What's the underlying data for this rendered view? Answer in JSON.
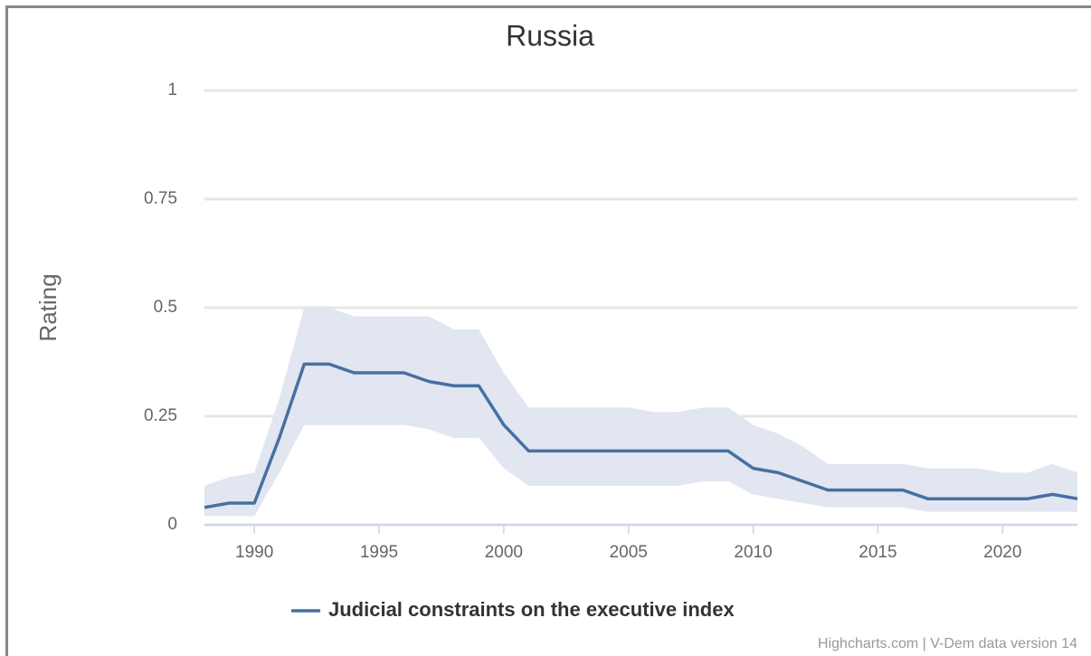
{
  "chart_data": {
    "type": "line",
    "title": "Russia",
    "y_label": "Rating",
    "credits": "Highcharts.com | V-Dem data version 14",
    "x": [
      1988,
      1989,
      1990,
      1991,
      1992,
      1993,
      1994,
      1995,
      1996,
      1997,
      1998,
      1999,
      2000,
      2001,
      2002,
      2003,
      2004,
      2005,
      2006,
      2007,
      2008,
      2009,
      2010,
      2011,
      2012,
      2013,
      2014,
      2015,
      2016,
      2017,
      2018,
      2019,
      2020,
      2021,
      2022,
      2023
    ],
    "series": [
      {
        "name": "Judicial constraints on the executive index",
        "color": "#4670a4",
        "band_color": "#e1e6f0",
        "values": [
          0.04,
          0.05,
          0.05,
          0.2,
          0.37,
          0.37,
          0.35,
          0.35,
          0.35,
          0.33,
          0.32,
          0.32,
          0.23,
          0.17,
          0.17,
          0.17,
          0.17,
          0.17,
          0.17,
          0.17,
          0.17,
          0.17,
          0.13,
          0.12,
          0.1,
          0.08,
          0.08,
          0.08,
          0.08,
          0.06,
          0.06,
          0.06,
          0.06,
          0.06,
          0.07,
          0.06
        ],
        "upper": [
          0.09,
          0.11,
          0.12,
          0.29,
          0.5,
          0.5,
          0.48,
          0.48,
          0.48,
          0.48,
          0.45,
          0.45,
          0.35,
          0.27,
          0.27,
          0.27,
          0.27,
          0.27,
          0.26,
          0.26,
          0.27,
          0.27,
          0.23,
          0.21,
          0.18,
          0.14,
          0.14,
          0.14,
          0.14,
          0.13,
          0.13,
          0.13,
          0.12,
          0.12,
          0.14,
          0.12
        ],
        "lower": [
          0.02,
          0.02,
          0.02,
          0.12,
          0.23,
          0.23,
          0.23,
          0.23,
          0.23,
          0.22,
          0.2,
          0.2,
          0.13,
          0.09,
          0.09,
          0.09,
          0.09,
          0.09,
          0.09,
          0.09,
          0.1,
          0.1,
          0.07,
          0.06,
          0.05,
          0.04,
          0.04,
          0.04,
          0.04,
          0.03,
          0.03,
          0.03,
          0.03,
          0.03,
          0.03,
          0.03
        ]
      }
    ],
    "xlim": [
      1988,
      2023
    ],
    "xticks": [
      1990,
      1995,
      2000,
      2005,
      2010,
      2015,
      2020
    ],
    "ylim": [
      0,
      1
    ],
    "yticks": [
      0,
      0.25,
      0.5,
      0.75,
      1
    ],
    "grid": true,
    "legend": "bottom"
  }
}
